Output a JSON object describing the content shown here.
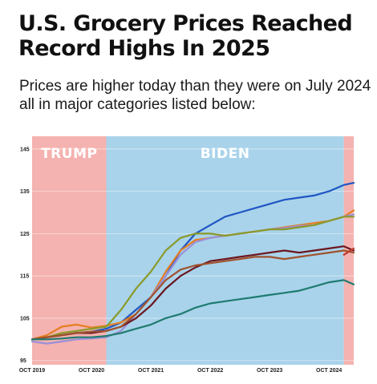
{
  "title": "U.S. Grocery Prices Reached Record Highs In 2025",
  "subtitle": "Prices are higher today than they were on July 2024 all in major categories listed below:",
  "chart_data": {
    "type": "line",
    "title": "U.S. Grocery Prices Reached Record Highs In 2025",
    "subtitle": "Prices are higher today than they were on July 2024 all in major categories listed below:",
    "xlabel": "",
    "ylabel": "",
    "x_ticks": [
      "OCT 2019",
      "OCT 2020",
      "OCT 2021",
      "OCT 2022",
      "OCT 2023",
      "OCT 2024"
    ],
    "y_ticks": [
      95,
      105,
      115,
      125,
      135,
      145
    ],
    "ylim": [
      94,
      148
    ],
    "xlim": [
      "2019-10",
      "2025-03"
    ],
    "grid": "horizontal",
    "legend": "none",
    "shaded_periods": [
      {
        "label": "TRUMP",
        "start": "2019-10",
        "end": "2021-01",
        "color": "#f4b3b0"
      },
      {
        "label": "BIDEN",
        "start": "2021-01",
        "end": "2025-01",
        "color": "#a9d3ea"
      },
      {
        "label": "",
        "start": "2025-01",
        "end": "2025-03",
        "color": "#f4b3b0"
      }
    ],
    "x": [
      "2019-10",
      "2020-01",
      "2020-04",
      "2020-07",
      "2020-10",
      "2021-01",
      "2021-04",
      "2021-07",
      "2021-10",
      "2022-01",
      "2022-04",
      "2022-07",
      "2022-10",
      "2023-01",
      "2023-04",
      "2023-07",
      "2023-10",
      "2024-01",
      "2024-04",
      "2024-07",
      "2024-10",
      "2025-01",
      "2025-03"
    ],
    "series": [
      {
        "color": "#1f56c4",
        "values": [
          100,
          100.5,
          101,
          101.5,
          101.8,
          102.5,
          104,
          107,
          110,
          115,
          121,
          125,
          127,
          129,
          130,
          131,
          132,
          133,
          133.5,
          134,
          135,
          136.5,
          137
        ]
      },
      {
        "color": "#e67e22",
        "values": [
          100,
          101,
          103,
          103.5,
          102.8,
          103.2,
          104,
          106,
          110,
          116,
          121,
          123.5,
          124,
          124.5,
          125,
          125.5,
          126,
          126.5,
          127,
          127.5,
          128,
          129,
          130.5
        ]
      },
      {
        "color": "#9b8fd8",
        "values": [
          99.5,
          99,
          99.5,
          100,
          100.2,
          100.5,
          102,
          106,
          110,
          115,
          120,
          123,
          124,
          124.5,
          125,
          125.5,
          126,
          126.3,
          126.8,
          127,
          128,
          129,
          129.5
        ]
      },
      {
        "color": "#8a9a2a",
        "values": [
          100,
          100.5,
          101.5,
          102,
          102.5,
          103,
          107,
          112,
          116,
          121,
          124,
          125,
          125,
          124.5,
          125,
          125.5,
          126,
          126,
          126.5,
          127,
          128,
          129,
          129
        ]
      },
      {
        "color": "#6b1620",
        "values": [
          100,
          100.5,
          101,
          101.5,
          101.5,
          102,
          103,
          105,
          108,
          112,
          115,
          117,
          118.5,
          119,
          119.5,
          120,
          120.5,
          121,
          120.5,
          121,
          121.5,
          122,
          121
        ]
      },
      {
        "color": "#a0522d",
        "values": [
          100,
          100.5,
          101,
          101.5,
          101.8,
          102,
          103,
          106,
          110,
          114,
          116.5,
          117.5,
          118,
          118.5,
          119,
          119.5,
          119.5,
          119,
          119.5,
          120,
          120.5,
          121,
          120.5
        ]
      },
      {
        "color": "#c0392b",
        "values": [
          null,
          null,
          null,
          null,
          null,
          null,
          null,
          null,
          null,
          null,
          null,
          null,
          null,
          null,
          null,
          null,
          null,
          null,
          null,
          null,
          null,
          120,
          121.5
        ]
      },
      {
        "color": "#1e7b70",
        "values": [
          100,
          100,
          100.2,
          100.5,
          100.5,
          100.8,
          101.5,
          102.5,
          103.5,
          105,
          106,
          107.5,
          108.5,
          109,
          109.5,
          110,
          110.5,
          111,
          111.5,
          112.5,
          113.5,
          114,
          113
        ]
      }
    ]
  }
}
